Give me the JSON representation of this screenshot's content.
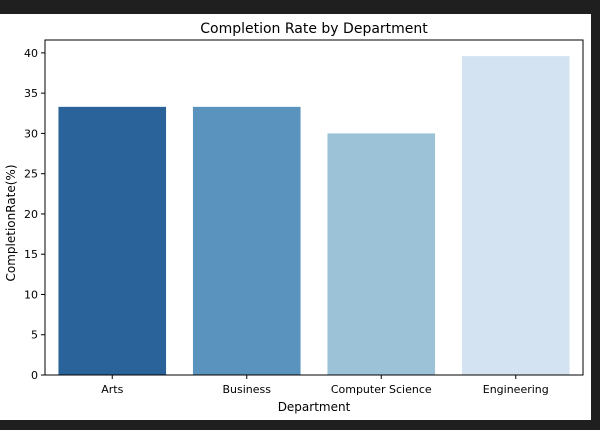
{
  "chart_data": {
    "type": "bar",
    "title": "Completion Rate by Department",
    "xlabel": "Department",
    "ylabel": "CompletionRate(%)",
    "categories": [
      "Arts",
      "Business",
      "Computer Science",
      "Engineering"
    ],
    "values": [
      33.3,
      33.3,
      30.0,
      39.6
    ],
    "ylim": [
      0,
      41.6
    ],
    "yticks": [
      0,
      5,
      10,
      15,
      20,
      25,
      30,
      35,
      40
    ],
    "colors": [
      "#2a6399",
      "#5a94be",
      "#9cc2d7",
      "#d4e3f1"
    ],
    "grid": false,
    "legend": "none"
  }
}
